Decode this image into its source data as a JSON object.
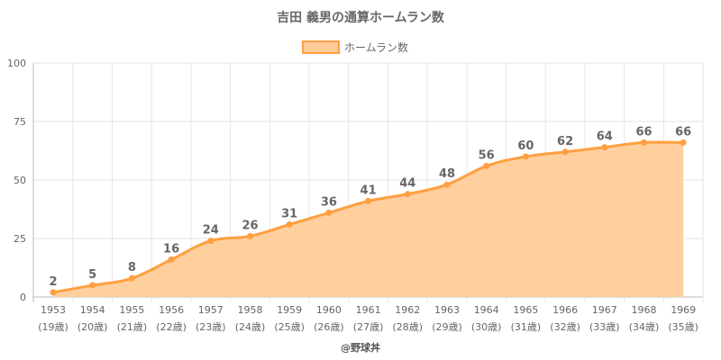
{
  "chart_data": {
    "type": "area",
    "title": "吉田 義男の通算ホームラン数",
    "legend": "ホームラン数",
    "categories": [
      "1953",
      "1954",
      "1955",
      "1956",
      "1957",
      "1958",
      "1959",
      "1960",
      "1961",
      "1962",
      "1963",
      "1964",
      "1965",
      "1966",
      "1967",
      "1968",
      "1969"
    ],
    "ages": [
      "(19歳)",
      "(20歳)",
      "(21歳)",
      "(22歳)",
      "(23歳)",
      "(24歳)",
      "(25歳)",
      "(26歳)",
      "(27歳)",
      "(28歳)",
      "(29歳)",
      "(30歳)",
      "(31歳)",
      "(32歳)",
      "(33歳)",
      "(34歳)",
      "(35歳)"
    ],
    "series": [
      {
        "name": "ホームラン数",
        "values": [
          2,
          5,
          8,
          16,
          24,
          26,
          31,
          36,
          41,
          44,
          48,
          56,
          60,
          62,
          64,
          66,
          66
        ]
      }
    ],
    "ylim": [
      0,
      100
    ],
    "yticks": [
      0,
      25,
      50,
      75,
      100
    ],
    "grid": true,
    "legend_position": "top-center",
    "colors": {
      "line": "#FF9F40",
      "fill": "#FFCC99",
      "grid": "#E6E6E6",
      "axis": "#BBBBBB"
    }
  },
  "credit": "@野球丼"
}
